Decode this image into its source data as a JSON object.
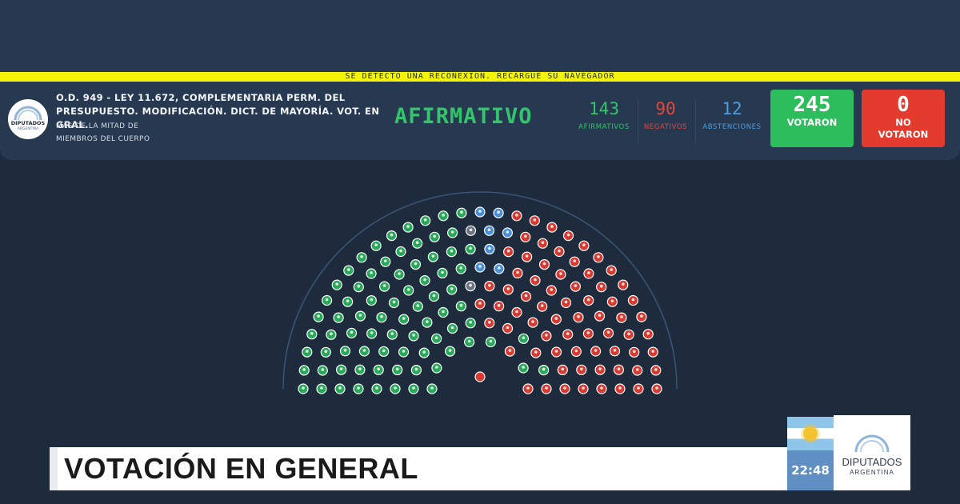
{
  "warning": "SE DETECTO UNA RECONEXION. RECARGUE SU NAVEGADOR",
  "logo": {
    "line1": "DIPUTADOS",
    "line2": "ARGENTINA"
  },
  "bill": {
    "title": "O.D. 949 - LEY 11.672, COMPLEMENTARIA PERM. DEL PRESUPUESTO. MODIFICACIÓN. DICT. DE MAYORÍA. VOT. EN GRAL.",
    "requirement_1": "MÁS DE LA MITAD DE",
    "requirement_2": "MIEMBROS DEL CUERPO"
  },
  "result": "AFIRMATIVO",
  "stats": {
    "afirmativos": {
      "value": "143",
      "label": "AFIRMATIVOS",
      "color": "#34c46c"
    },
    "negativos": {
      "value": "90",
      "label": "NEGATIVOS",
      "color": "#e2473a"
    },
    "abstenciones": {
      "value": "12",
      "label": "ABSTENCIONES",
      "color": "#4f9ce0"
    }
  },
  "votaron": {
    "value": "245",
    "label": "VOTARON",
    "color": "#2ebd5c"
  },
  "no_votaron": {
    "value": "0",
    "label_1": "NO",
    "label_2": "VOTARON",
    "color": "#e33b2e"
  },
  "hemicycle": {
    "seat_colors": {
      "afirmativo": "#2aa85a",
      "negativo": "#d63a30",
      "abstencion": "#4a8fd6",
      "ausente": "#6b7480"
    }
  },
  "lower_third": {
    "title": "VOTACIÓN EN GENERAL"
  },
  "clock": "22:48",
  "brand": {
    "line1": "DIPUTADOS",
    "line2": "ARGENTINA"
  }
}
